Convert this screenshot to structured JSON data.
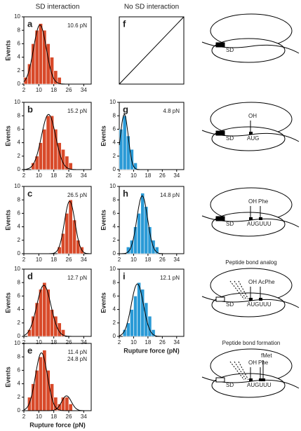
{
  "column_titles": [
    "SD interaction",
    "No SD interaction"
  ],
  "chart_data": [
    {
      "type": "histogram",
      "panel": "a",
      "color": "#d84a2a",
      "bins": [
        2,
        4,
        6,
        8,
        10,
        12,
        14,
        16,
        18,
        20,
        22,
        24,
        26,
        28,
        30,
        32,
        34,
        36,
        38
      ],
      "counts": [
        1,
        3,
        6,
        8,
        9,
        8,
        6,
        4,
        2,
        1,
        0,
        0,
        0,
        0,
        0,
        0,
        0,
        0
      ],
      "fit": [
        {
          "center": {
            "value": 10.6,
            "label": "10.6 pN"
          },
          "width": 3.4,
          "height": 8.8
        }
      ],
      "xlim": [
        2,
        38
      ],
      "xticks": [
        2,
        10,
        18,
        26,
        34
      ],
      "ylim": [
        0,
        10
      ],
      "yticks": [
        0,
        2,
        4,
        6,
        8,
        10
      ],
      "ylabel": "Events"
    },
    {
      "type": "histogram",
      "panel": "b",
      "color": "#d84a2a",
      "bins": [
        2,
        4,
        6,
        8,
        10,
        12,
        14,
        16,
        18,
        20,
        22,
        24,
        26,
        28,
        30,
        32,
        34,
        36,
        38
      ],
      "counts": [
        0,
        0,
        1,
        2,
        4,
        6,
        8,
        8,
        6,
        4,
        3,
        2,
        1,
        0,
        0,
        0,
        0,
        0
      ],
      "fit": [
        {
          "center": {
            "value": 15.2,
            "label": "15.2 pN"
          },
          "width": 3.8,
          "height": 8.2
        }
      ],
      "xlim": [
        2,
        38
      ],
      "xticks": [
        2,
        10,
        18,
        26,
        34
      ],
      "ylim": [
        0,
        10
      ],
      "yticks": [
        0,
        2,
        4,
        6,
        8,
        10
      ],
      "ylabel": "Events"
    },
    {
      "type": "histogram",
      "panel": "c",
      "color": "#d84a2a",
      "bins": [
        2,
        4,
        6,
        8,
        10,
        12,
        14,
        16,
        18,
        20,
        22,
        24,
        26,
        28,
        30,
        32,
        34,
        36,
        38
      ],
      "counts": [
        0,
        0,
        0,
        0,
        0,
        0,
        0,
        0,
        0,
        1,
        3,
        6,
        8,
        5,
        2,
        1,
        0,
        0
      ],
      "fit": [
        {
          "center": {
            "value": 26.5,
            "label": "26.5 pN"
          },
          "width": 2.8,
          "height": 7.8
        }
      ],
      "xlim": [
        2,
        38
      ],
      "xticks": [
        2,
        10,
        18,
        26,
        34
      ],
      "ylim": [
        0,
        10
      ],
      "yticks": [
        0,
        2,
        4,
        6,
        8,
        10
      ],
      "ylabel": "Events"
    },
    {
      "type": "histogram",
      "panel": "d",
      "color": "#d84a2a",
      "bins": [
        2,
        4,
        6,
        8,
        10,
        12,
        14,
        16,
        18,
        20,
        22,
        24,
        26,
        28,
        30,
        32,
        34,
        36,
        38
      ],
      "counts": [
        0,
        1,
        3,
        5,
        7,
        8,
        7,
        4,
        3,
        2,
        1,
        0,
        0,
        0,
        0,
        0,
        0,
        0
      ],
      "fit": [
        {
          "center": {
            "value": 12.7,
            "label": "12.7 pN"
          },
          "width": 3.8,
          "height": 7.6
        }
      ],
      "xlim": [
        2,
        38
      ],
      "xticks": [
        2,
        10,
        18,
        26,
        34
      ],
      "ylim": [
        0,
        10
      ],
      "yticks": [
        0,
        2,
        4,
        6,
        8,
        10
      ],
      "ylabel": "Events"
    },
    {
      "type": "histogram",
      "panel": "e",
      "color": "#d84a2a",
      "bins": [
        2,
        4,
        6,
        8,
        10,
        12,
        14,
        16,
        18,
        20,
        22,
        24,
        26,
        28,
        30,
        32,
        34,
        36,
        38
      ],
      "counts": [
        0,
        2,
        4,
        6,
        8,
        9,
        6,
        4,
        2,
        1,
        2,
        2,
        1,
        0,
        0,
        0,
        0,
        0
      ],
      "fit": [
        {
          "center": {
            "value": 11.4,
            "label": "11.4 pN"
          },
          "width": 3.2,
          "height": 8.6
        },
        {
          "center": {
            "value": 24.8,
            "label": "24.8 pN"
          },
          "width": 2.6,
          "height": 2.2
        }
      ],
      "xlim": [
        2,
        38
      ],
      "xticks": [
        2,
        10,
        18,
        26,
        34
      ],
      "ylim": [
        0,
        10
      ],
      "yticks": [
        0,
        2,
        4,
        6,
        8,
        10
      ],
      "ylabel": "Events",
      "xlabel": "Rupture force (pN)"
    },
    {
      "type": "empty",
      "panel": "f"
    },
    {
      "type": "histogram",
      "panel": "g",
      "color": "#2a9ad6",
      "bins": [
        2,
        4,
        6,
        8,
        10,
        12,
        14,
        16,
        18,
        20,
        22,
        24,
        26,
        28,
        30,
        32,
        34,
        36,
        38
      ],
      "counts": [
        6,
        8,
        5,
        3,
        1,
        0,
        0,
        0,
        0,
        0,
        0,
        0,
        0,
        0,
        0,
        0,
        0,
        0
      ],
      "fit": [
        {
          "center": {
            "value": 4.8,
            "label": "4.8 pN"
          },
          "width": 2.2,
          "height": 8.2
        }
      ],
      "xlim": [
        2,
        38
      ],
      "xticks": [
        2,
        10,
        18,
        26,
        34
      ],
      "ylim": [
        0,
        10
      ],
      "yticks": [
        0,
        2,
        4,
        6,
        8,
        10
      ],
      "ylabel": "Events"
    },
    {
      "type": "histogram",
      "panel": "h",
      "color": "#2a9ad6",
      "bins": [
        2,
        4,
        6,
        8,
        10,
        12,
        14,
        16,
        18,
        20,
        22,
        24,
        26,
        28,
        30,
        32,
        34,
        36,
        38
      ],
      "counts": [
        0,
        0,
        1,
        2,
        4,
        6,
        9,
        7,
        4,
        2,
        1,
        0,
        0,
        0,
        0,
        0,
        0,
        0
      ],
      "fit": [
        {
          "center": {
            "value": 14.8,
            "label": "14.8 pN"
          },
          "width": 3.0,
          "height": 8.6
        }
      ],
      "xlim": [
        2,
        38
      ],
      "xticks": [
        2,
        10,
        18,
        26,
        34
      ],
      "ylim": [
        0,
        10
      ],
      "yticks": [
        0,
        2,
        4,
        6,
        8,
        10
      ],
      "ylabel": "Events"
    },
    {
      "type": "histogram",
      "panel": "i",
      "color": "#2a9ad6",
      "bins": [
        2,
        4,
        6,
        8,
        10,
        12,
        14,
        16,
        18,
        20,
        22,
        24,
        26,
        28,
        30,
        32,
        34,
        36,
        38
      ],
      "counts": [
        0,
        1,
        2,
        4,
        6,
        8,
        7,
        5,
        3,
        1,
        0,
        0,
        0,
        0,
        0,
        0,
        0,
        0
      ],
      "fit": [
        {
          "center": {
            "value": 12.1,
            "label": "12.1 pN"
          },
          "width": 3.4,
          "height": 7.8
        }
      ],
      "xlim": [
        2,
        38
      ],
      "xticks": [
        2,
        10,
        18,
        26,
        34
      ],
      "ylim": [
        0,
        10
      ],
      "yticks": [
        0,
        2,
        4,
        6,
        8,
        10
      ],
      "ylabel": "Events",
      "xlabel": "Rupture force (pN)"
    }
  ],
  "diagrams": [
    {
      "labels": [
        "SD"
      ]
    },
    {
      "labels": [
        "SD",
        "AUG",
        "OH"
      ]
    },
    {
      "labels": [
        "SD",
        "AUGUUU",
        "OH",
        "Phe"
      ]
    },
    {
      "title": "Peptide bond analog",
      "labels": [
        "SD",
        "AUGUUU",
        "OH",
        "AcPhe"
      ]
    },
    {
      "title": "Peptide bond formation",
      "labels": [
        "SD",
        "AUGUUU",
        "OH",
        "Phe",
        "fMet"
      ]
    }
  ]
}
